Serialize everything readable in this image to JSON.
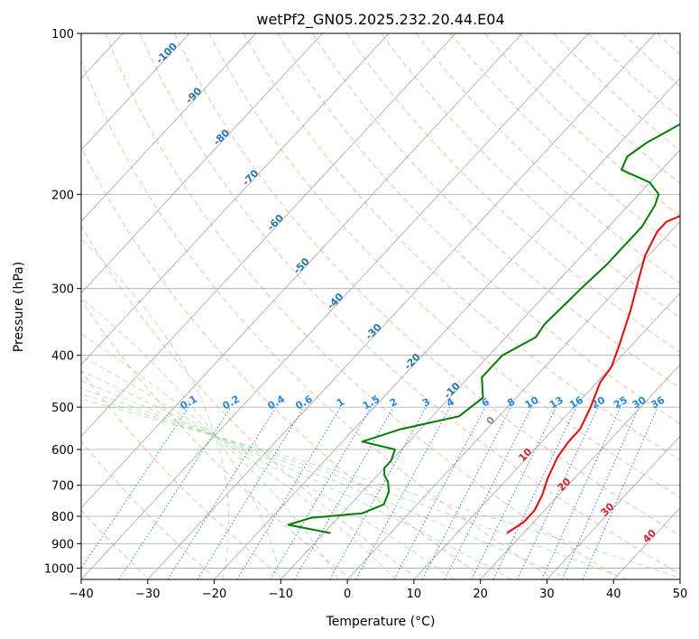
{
  "chart_data": {
    "type": "line",
    "subtype": "skew-t log-p diagram",
    "title": "wetPf2_GN05.2025.232.20.44.E04",
    "xlabel": "Temperature (°C)",
    "ylabel": "Pressure (hPa)",
    "xlim": [
      -40,
      50
    ],
    "ylim": [
      1050,
      100
    ],
    "y_scale": "log",
    "x_ticks": [
      -40,
      -30,
      -20,
      -10,
      0,
      10,
      20,
      30,
      40,
      50
    ],
    "y_ticks": [
      1000,
      900,
      800,
      700,
      600,
      500,
      400,
      300,
      200,
      100
    ],
    "grid": true,
    "series": [
      {
        "color": "#ff0000",
        "x": [
          17.5,
          18.5,
          18.5,
          17.5,
          16,
          14.5,
          14,
          14,
          12.5,
          10.5,
          10,
          8,
          5,
          2,
          -0.5,
          -2,
          -2,
          1,
          5,
          10,
          14,
          16,
          18,
          20,
          22,
          26,
          30
        ],
        "y": [
          860,
          820,
          780,
          730,
          680,
          620,
          580,
          550,
          500,
          450,
          420,
          380,
          330,
          290,
          260,
          235,
          225,
          212,
          200,
          185,
          170,
          155,
          145,
          135,
          125,
          110,
          100
        ]
      },
      {
        "color": "#008000",
        "x": [
          -9,
          -16.5,
          -14,
          -7,
          -5,
          -6,
          -7.5,
          -9,
          -10,
          -10,
          -11,
          -17,
          -13,
          -6,
          -5,
          -8,
          -8,
          -5.5,
          -6,
          -5.5,
          -5,
          -5,
          -6,
          -7,
          -10,
          -16,
          -17,
          -16,
          -15,
          -13,
          -10,
          -6,
          -2
        ],
        "y": [
          860,
          830,
          805,
          790,
          760,
          720,
          690,
          670,
          650,
          630,
          600,
          580,
          550,
          520,
          480,
          440,
          400,
          370,
          350,
          300,
          270,
          230,
          210,
          200,
          190,
          180,
          170,
          160,
          155,
          145,
          130,
          115,
          100
        ]
      }
    ],
    "isotherm_labels": [
      "-100",
      "-90",
      "-80",
      "-70",
      "-60",
      "-50",
      "-40",
      "-30",
      "-20",
      "-10",
      "0",
      "10",
      "20",
      "30",
      "40"
    ],
    "mixing_ratio_labels": [
      "0.1",
      "0.2",
      "0.4",
      "0.6",
      "1",
      "1.5",
      "2",
      "3",
      "4",
      "6",
      "8",
      "10",
      "13",
      "16",
      "20",
      "25",
      "30",
      "36"
    ],
    "colors": {
      "temperature": "#ff0000",
      "dewpoint": "#008000",
      "dry_adiabat": "#f4a582",
      "moist_adiabat": "#a6d9a6",
      "mixing_ratio": "#1e88e5",
      "isotherm": "#999999",
      "isotherm_label_cold": "#1f77b4",
      "isotherm_label_warm": "#d62728"
    }
  }
}
